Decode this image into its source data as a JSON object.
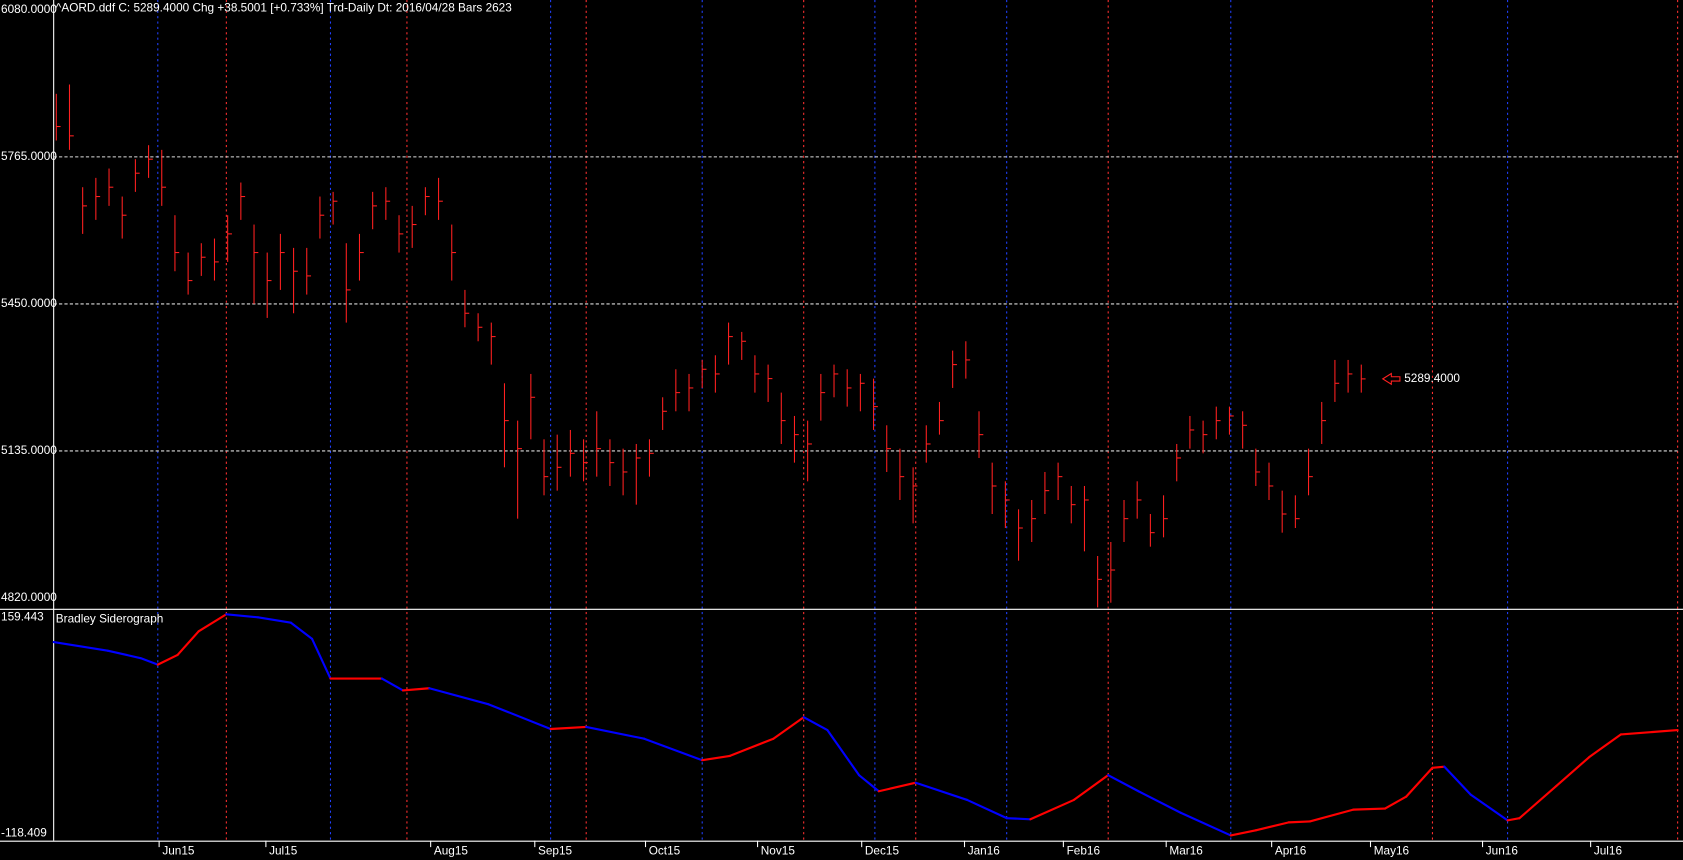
{
  "chart_data": [
    {
      "type": "hlc",
      "header": "^AORD.ddf  C: 5289.4000 Chg +38.5001 [+0.733%]  Trd-Daily  Dt: 2016/04/28  Bars 2623",
      "color": "#ff2020",
      "high": [
        5900,
        5920,
        5700,
        5720,
        5740,
        5680,
        5760,
        5790,
        5780,
        5640,
        5560,
        5580,
        5590,
        5640,
        5710,
        5620,
        5560,
        5600,
        5570,
        5570,
        5680,
        5690,
        5580,
        5600,
        5690,
        5700,
        5640,
        5660,
        5700,
        5720,
        5620,
        5480,
        5430,
        5410,
        5280,
        5200,
        5300,
        5160,
        5170,
        5180,
        5160,
        5220,
        5160,
        5140,
        5150,
        5160,
        5250,
        5310,
        5300,
        5330,
        5340,
        5410,
        5390,
        5340,
        5320,
        5260,
        5210,
        5200,
        5300,
        5320,
        5310,
        5300,
        5290,
        5190,
        5140,
        5100,
        5190,
        5240,
        5350,
        5370,
        5220,
        5110,
        5070,
        5010,
        5030,
        5090,
        5110,
        5060,
        5060,
        4910,
        4940,
        5030,
        5070,
        5000,
        5040,
        5150,
        5210,
        5200,
        5230,
        5230,
        5220,
        5140,
        5110,
        5050,
        5040,
        5140,
        5240,
        5330,
        5330,
        5320
      ],
      "low": [
        5800,
        5780,
        5600,
        5630,
        5660,
        5590,
        5690,
        5720,
        5660,
        5520,
        5470,
        5510,
        5500,
        5540,
        5630,
        5450,
        5420,
        5480,
        5430,
        5470,
        5590,
        5620,
        5410,
        5500,
        5610,
        5630,
        5560,
        5570,
        5640,
        5630,
        5500,
        5400,
        5370,
        5320,
        5100,
        4990,
        5160,
        5040,
        5050,
        5080,
        5070,
        5080,
        5060,
        5040,
        5020,
        5080,
        5180,
        5220,
        5220,
        5270,
        5260,
        5320,
        5330,
        5260,
        5240,
        5150,
        5110,
        5070,
        5200,
        5250,
        5230,
        5220,
        5180,
        5090,
        5030,
        4980,
        5110,
        5170,
        5270,
        5290,
        5120,
        5000,
        4970,
        4900,
        4940,
        5000,
        5030,
        4980,
        4920,
        4800,
        4810,
        4940,
        4990,
        4930,
        4950,
        5070,
        5140,
        5130,
        5160,
        5170,
        5140,
        5060,
        5030,
        4960,
        4970,
        5040,
        5150,
        5240,
        5260,
        5260
      ],
      "close": [
        5830,
        5810,
        5660,
        5680,
        5700,
        5640,
        5730,
        5760,
        5700,
        5560,
        5500,
        5550,
        5540,
        5600,
        5680,
        5560,
        5500,
        5560,
        5520,
        5510,
        5640,
        5670,
        5480,
        5560,
        5660,
        5670,
        5600,
        5620,
        5680,
        5670,
        5560,
        5430,
        5400,
        5380,
        5200,
        5140,
        5250,
        5080,
        5100,
        5130,
        5110,
        5140,
        5110,
        5090,
        5120,
        5130,
        5220,
        5260,
        5270,
        5310,
        5300,
        5380,
        5370,
        5300,
        5290,
        5200,
        5170,
        5150,
        5260,
        5300,
        5270,
        5280,
        5230,
        5140,
        5080,
        5060,
        5150,
        5200,
        5320,
        5330,
        5170,
        5060,
        5030,
        4970,
        4990,
        5050,
        5080,
        5020,
        5030,
        4860,
        4880,
        4990,
        5030,
        4960,
        4990,
        5120,
        5180,
        5170,
        5200,
        5210,
        5190,
        5090,
        5060,
        5000,
        4990,
        5080,
        5200,
        5280,
        5300,
        5289.4
      ],
      "last_label": "5289.4000",
      "ylim": [
        4797,
        6101
      ],
      "yticks": [
        {
          "value": 6080,
          "label": "6080.0000"
        },
        {
          "value": 5765,
          "label": "5765.0000"
        },
        {
          "value": 5450,
          "label": "5450.0000"
        },
        {
          "value": 5135,
          "label": "5135.0000"
        },
        {
          "value": 4820,
          "label": "4820.0000"
        }
      ],
      "grid": true
    },
    {
      "type": "line",
      "title": "Bradley Siderograph",
      "rising_color": "#ff0000",
      "falling_color": "#0000ff",
      "x": [
        -0.2,
        3.9,
        6.4,
        7.7,
        9.2,
        10.8,
        12.9,
        15.3,
        17.8,
        19.4,
        20.8,
        24.7,
        26.3,
        28.3,
        32.8,
        37.5,
        40.2,
        44.6,
        49.0,
        51.1,
        54.4,
        56.7,
        58.5,
        60.9,
        62.4,
        65.2,
        69.1,
        72.1,
        73.9,
        77.2,
        79.8,
        82.1,
        85.3,
        89.1,
        91.0,
        93.5,
        95.1,
        98.4,
        100.8,
        102.4,
        104.4,
        105.3,
        107.3,
        110.1,
        111.0,
        113.8,
        116.3,
        118.7,
        123.0
      ],
      "values": [
        124.5,
        113.7,
        104.3,
        96.2,
        108.3,
        138.0,
        159.443,
        155.6,
        148.8,
        128.6,
        78.7,
        78.7,
        63.8,
        66.5,
        46.3,
        15.3,
        17.9,
        3.1,
        -23.9,
        -18.5,
        3.1,
        30.1,
        13.9,
        -42.7,
        -62.9,
        -52.2,
        -73.8,
        -96.7,
        -98.1,
        -73.8,
        -42.7,
        -62.9,
        -89.9,
        -118.409,
        -112,
        -102,
        -100.8,
        -86,
        -84.6,
        -69.8,
        -33.4,
        -32,
        -67.1,
        -99.5,
        -96.8,
        -56.3,
        -19.9,
        8.5,
        13.9
      ],
      "ylim": [
        -125,
        165
      ],
      "yticks": [
        159.443,
        -118.409
      ]
    }
  ],
  "time_axis": {
    "xlim": [
      -0.2,
      123
    ],
    "xticks": [
      {
        "value": 7.8,
        "label": "Jun15"
      },
      {
        "value": 15.9,
        "label": "Jul15"
      },
      {
        "value": 28.4,
        "label": "Aug15"
      },
      {
        "value": 36.3,
        "label": "Sep15"
      },
      {
        "value": 44.7,
        "label": "Oct15"
      },
      {
        "value": 53.2,
        "label": "Nov15"
      },
      {
        "value": 61.1,
        "label": "Dec15"
      },
      {
        "value": 68.9,
        "label": "Jan16"
      },
      {
        "value": 76.4,
        "label": "Feb16"
      },
      {
        "value": 84.2,
        "label": "Mar16"
      },
      {
        "value": 92.2,
        "label": "Apr16"
      },
      {
        "value": 99.7,
        "label": "May16"
      },
      {
        "value": 108.2,
        "label": "Jun16"
      },
      {
        "value": 116.4,
        "label": "Jul16"
      }
    ],
    "cycle_lines": [
      {
        "color": "#2040ff",
        "x": [
          7.7,
          20.8,
          37.5,
          49.0,
          62.1,
          72.1,
          89.1,
          110.1
        ]
      },
      {
        "color": "#ff3030",
        "x": [
          12.9,
          26.6,
          40.2,
          56.7,
          65.2,
          79.8,
          104.4,
          123.0
        ]
      }
    ]
  }
}
